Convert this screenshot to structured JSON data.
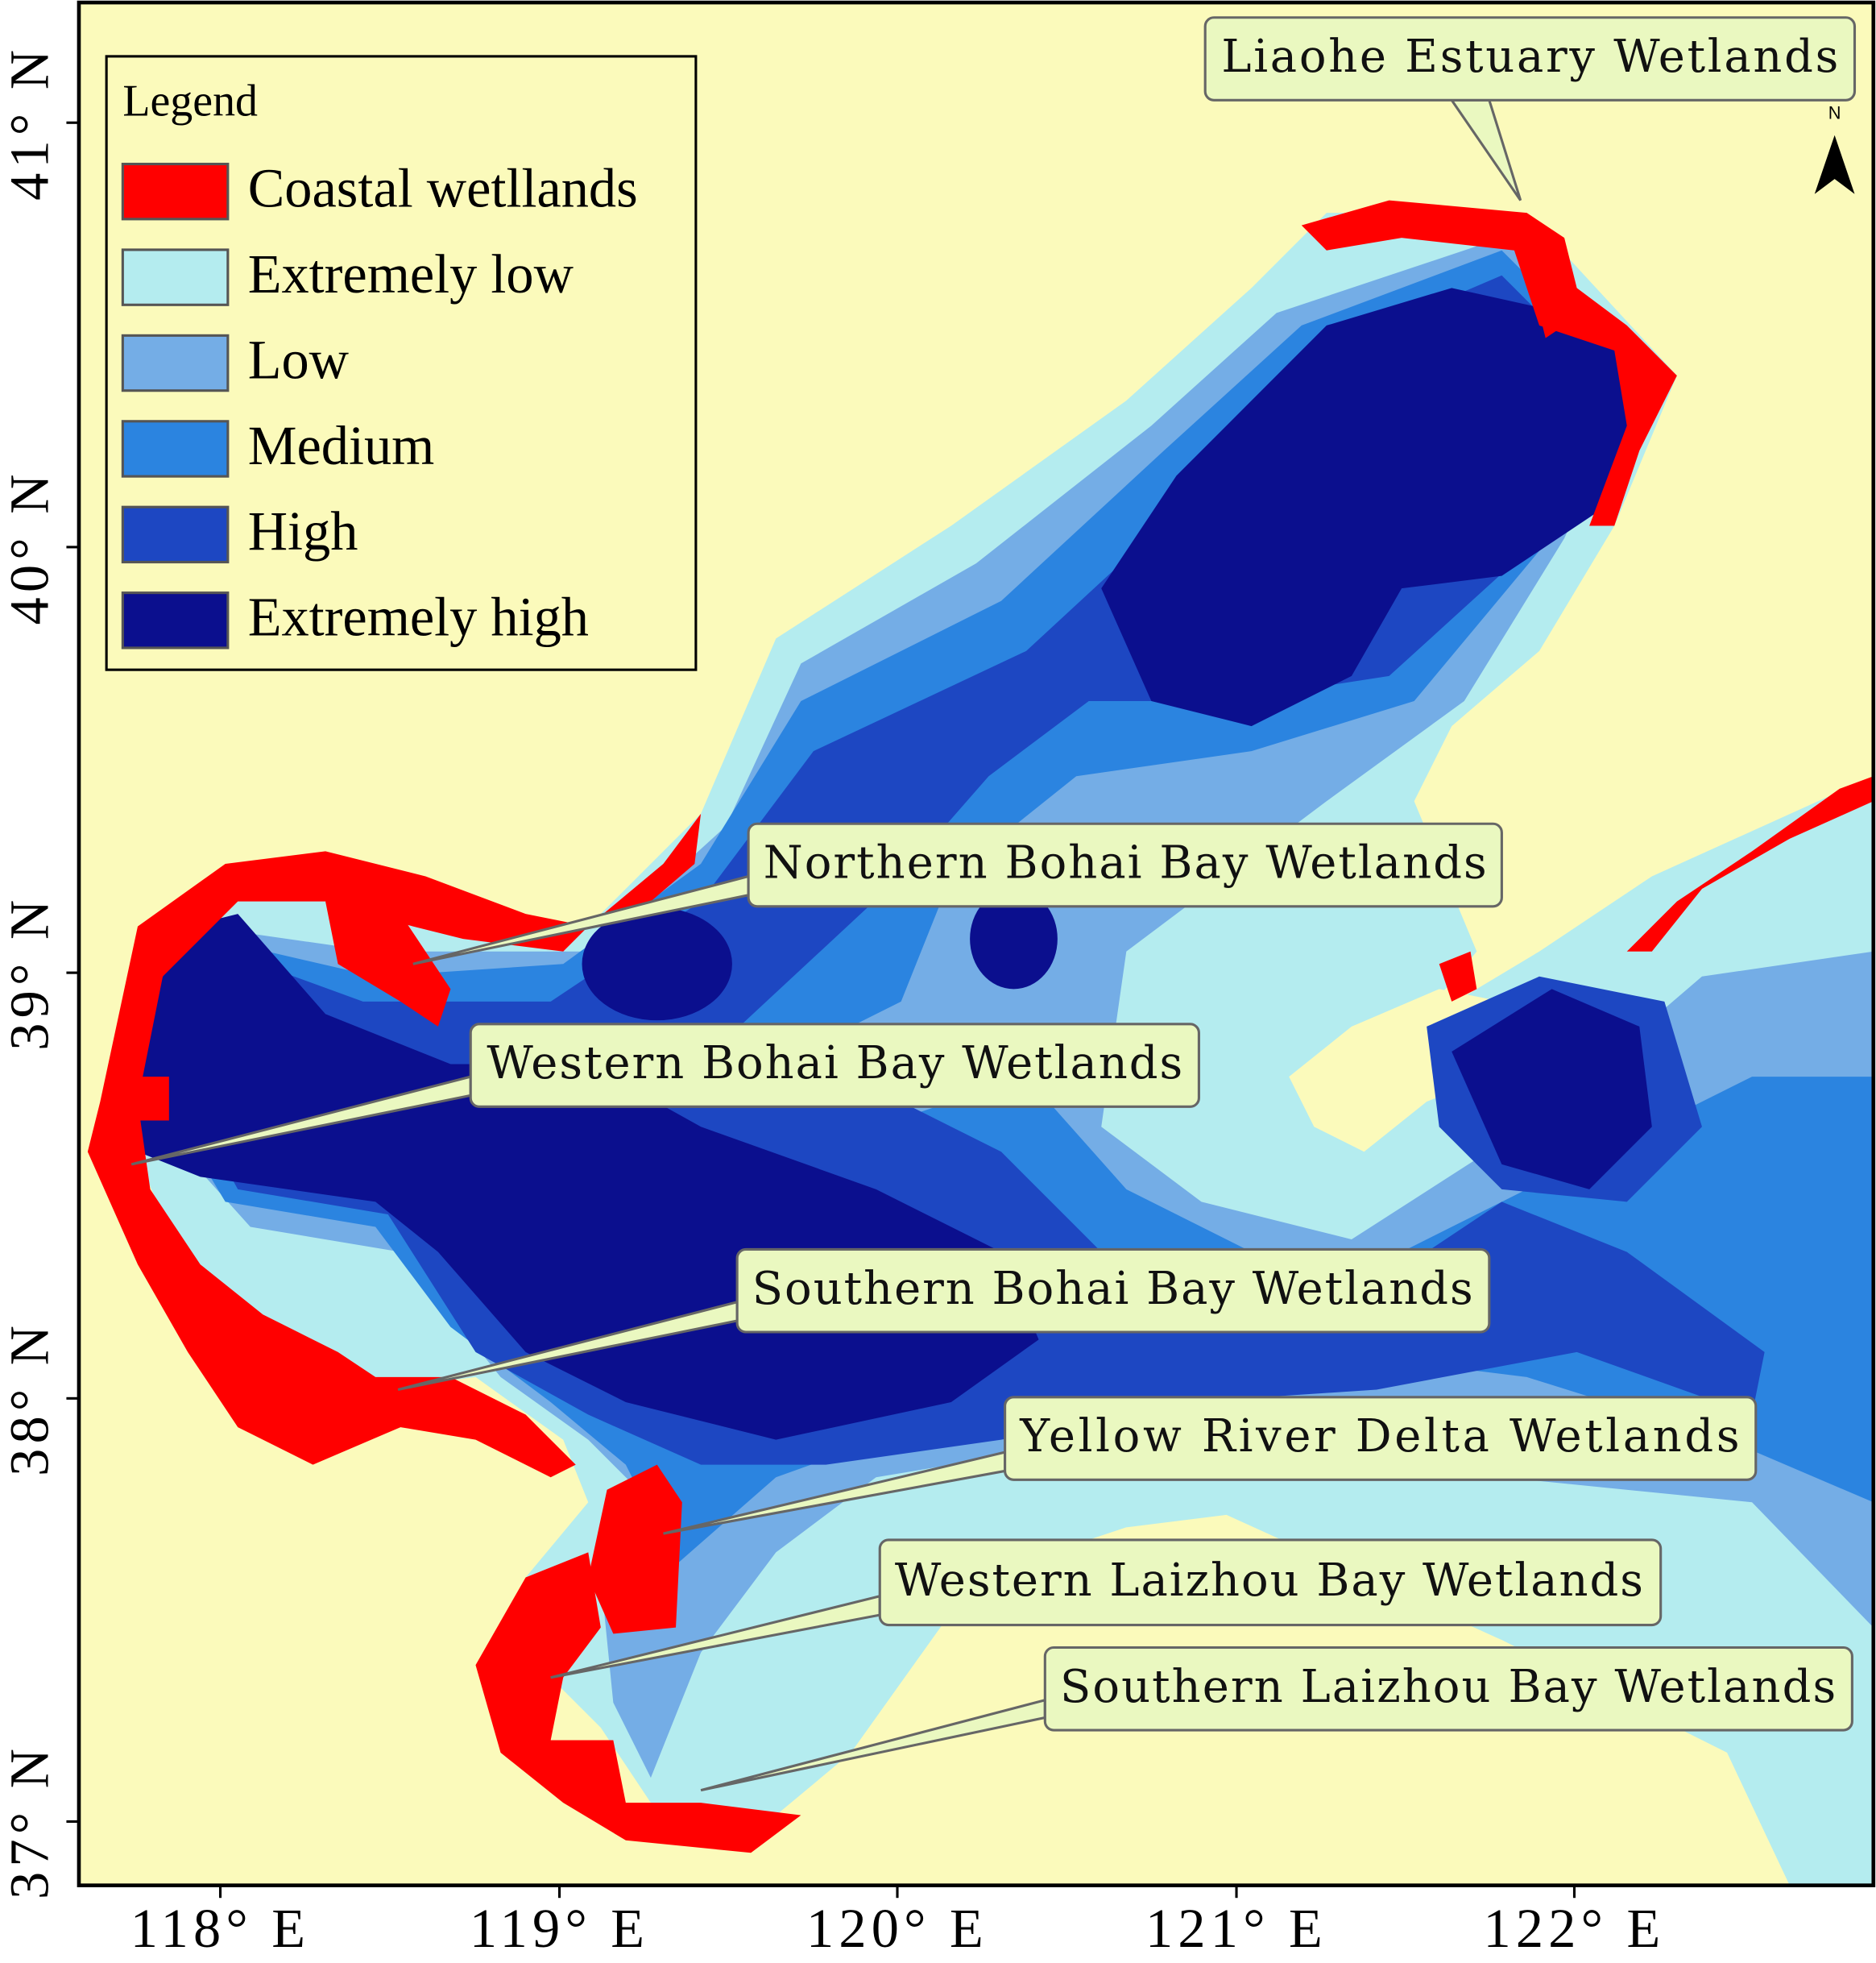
{
  "legend": {
    "title": "Legend",
    "items": [
      {
        "label": "Coastal wetllands",
        "color": "#ff0000"
      },
      {
        "label": "Extremely low",
        "color": "#b4ecef"
      },
      {
        "label": "Low",
        "color": "#74ade6"
      },
      {
        "label": "Medium",
        "color": "#2b84e0"
      },
      {
        "label": "High",
        "color": "#1d47c2"
      },
      {
        "label": "Extremely high",
        "color": "#0b0f8e"
      }
    ]
  },
  "callouts": [
    {
      "label": "Liaohe Estuary Wetlands"
    },
    {
      "label": "Northern Bohai Bay Wetlands"
    },
    {
      "label": "Western Bohai Bay Wetlands"
    },
    {
      "label": "Southern Bohai Bay Wetlands"
    },
    {
      "label": "Yellow River Delta Wetlands"
    },
    {
      "label": "Western Laizhou Bay Wetlands"
    },
    {
      "label": "Southern Laizhou Bay Wetlands"
    }
  ],
  "axes": {
    "x_ticks": [
      "118° E",
      "119° E",
      "120° E",
      "121° E",
      "122° E"
    ],
    "y_ticks": [
      "41° N",
      "40° N",
      "39° N",
      "38° N",
      "37° N"
    ]
  },
  "north_arrow": "N"
}
